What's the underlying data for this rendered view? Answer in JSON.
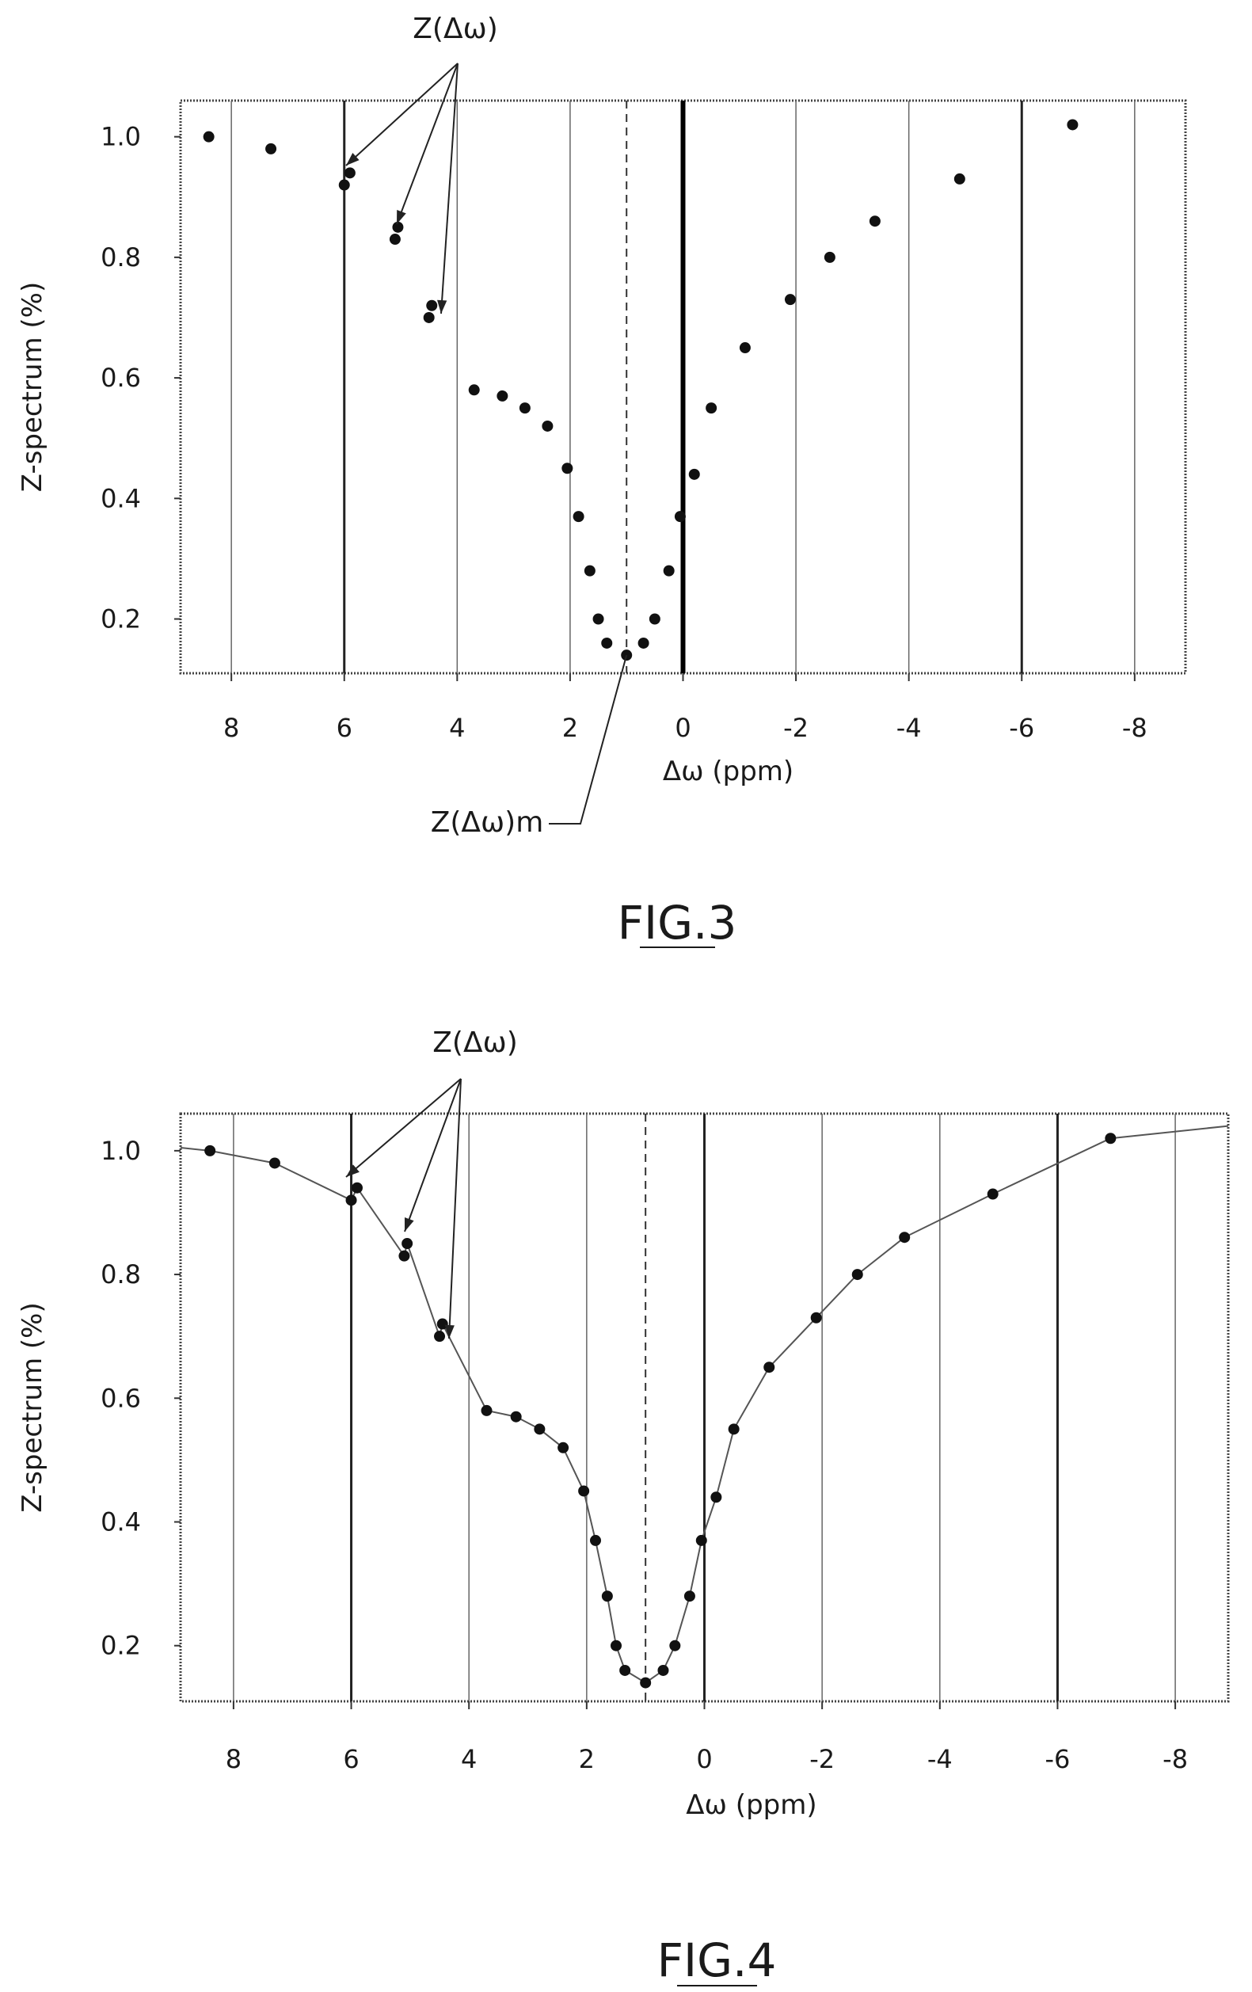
{
  "figures": [
    {
      "id": "fig3",
      "caption": "FIG.3",
      "annotations": {
        "z_label": "Z(Δω)",
        "zmin_label": "Z(Δω)m"
      },
      "chart_data": {
        "type": "scatter",
        "title": "",
        "xlabel": "Δω (ppm)",
        "ylabel": "Z-spectrum (%)",
        "xlim": [
          8.9,
          -8.9
        ],
        "ylim": [
          0.11,
          1.06
        ],
        "x_reversed": true,
        "xticks": [
          8,
          6,
          4,
          2,
          0,
          -2,
          -4,
          -6,
          -8
        ],
        "xtick_labels": [
          "8",
          "6",
          "4",
          "2",
          "0",
          "-2",
          "-4",
          "-6",
          "-8"
        ],
        "yticks": [
          0.2,
          0.4,
          0.6,
          0.8,
          1.0
        ],
        "ytick_labels": [
          "0.2",
          "0.4",
          "0.6",
          "0.8",
          "1.0"
        ],
        "vertical_grid": [
          8,
          6,
          4,
          2,
          -2,
          -4,
          -6,
          -8
        ],
        "fit_curve": false,
        "reference_lines": [
          {
            "x": 1.0,
            "style": "dashed"
          },
          {
            "x": 0.0,
            "style": "solid"
          }
        ],
        "series": [
          {
            "x": [
              8.4,
              7.3,
              6.0,
              5.9,
              5.1,
              5.05,
              4.5,
              4.45,
              3.7,
              3.2,
              2.8,
              2.4,
              2.05,
              1.85,
              1.65,
              1.5,
              1.35,
              1.0,
              0.7,
              0.5,
              0.25,
              0.05,
              -0.2,
              -0.5,
              -1.1,
              -1.9,
              -2.6,
              -3.4,
              -4.9,
              -6.9
            ],
            "y": [
              1.0,
              0.98,
              0.92,
              0.94,
              0.83,
              0.85,
              0.7,
              0.72,
              0.58,
              0.57,
              0.55,
              0.52,
              0.45,
              0.37,
              0.28,
              0.2,
              0.16,
              0.14,
              0.16,
              0.2,
              0.28,
              0.37,
              0.44,
              0.55,
              0.65,
              0.73,
              0.8,
              0.86,
              0.93,
              1.02
            ]
          }
        ]
      }
    },
    {
      "id": "fig4",
      "caption": "FIG.4",
      "annotations": {
        "z_label": "Z(Δω)"
      },
      "chart_data": {
        "type": "scatter",
        "title": "",
        "xlabel": "Δω (ppm)",
        "ylabel": "Z-spectrum (%)",
        "xlim": [
          8.9,
          -8.9
        ],
        "ylim": [
          0.11,
          1.06
        ],
        "x_reversed": true,
        "xticks": [
          8,
          6,
          4,
          2,
          0,
          -2,
          -4,
          -6,
          -8
        ],
        "xtick_labels": [
          "8",
          "6",
          "4",
          "2",
          "0",
          "-2",
          "-4",
          "-6",
          "-8"
        ],
        "yticks": [
          0.2,
          0.4,
          0.6,
          0.8,
          1.0
        ],
        "ytick_labels": [
          "0.2",
          "0.4",
          "0.6",
          "0.8",
          "1.0"
        ],
        "vertical_grid": [
          8,
          6,
          4,
          2,
          0,
          -2,
          -4,
          -6,
          -8
        ],
        "fit_curve": true,
        "reference_lines": [
          {
            "x": 1.0,
            "style": "dashed"
          }
        ],
        "series": [
          {
            "x": [
              8.4,
              7.3,
              6.0,
              5.9,
              5.1,
              5.05,
              4.5,
              4.45,
              3.7,
              3.2,
              2.8,
              2.4,
              2.05,
              1.85,
              1.65,
              1.5,
              1.35,
              1.0,
              0.7,
              0.5,
              0.25,
              0.05,
              -0.2,
              -0.5,
              -1.1,
              -1.9,
              -2.6,
              -3.4,
              -4.9,
              -6.9
            ],
            "y": [
              1.0,
              0.98,
              0.92,
              0.94,
              0.83,
              0.85,
              0.7,
              0.72,
              0.58,
              0.57,
              0.55,
              0.52,
              0.45,
              0.37,
              0.28,
              0.2,
              0.16,
              0.14,
              0.16,
              0.2,
              0.28,
              0.37,
              0.44,
              0.55,
              0.65,
              0.73,
              0.8,
              0.86,
              0.93,
              1.02
            ]
          }
        ]
      }
    }
  ]
}
